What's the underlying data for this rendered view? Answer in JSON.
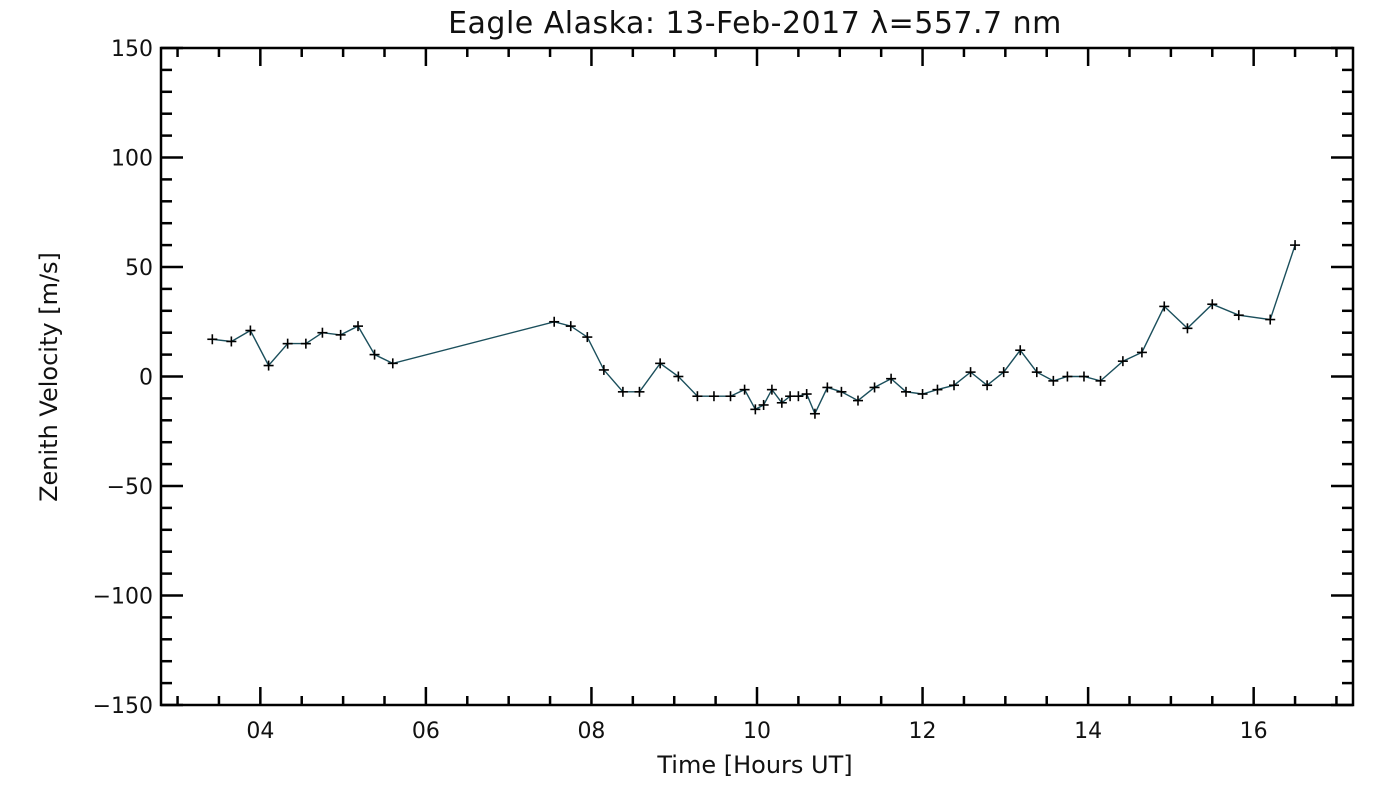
{
  "chart_data": {
    "type": "line",
    "title": "Eagle Alaska: 13-Feb-2017 λ=557.7 nm",
    "xlabel": "Time [Hours UT]",
    "ylabel": "Zenith Velocity [m/s]",
    "xlim": [
      2.8,
      17.2
    ],
    "ylim": [
      -150,
      150
    ],
    "x_ticks": [
      {
        "value": 4,
        "label": "04"
      },
      {
        "value": 6,
        "label": "06"
      },
      {
        "value": 8,
        "label": "08"
      },
      {
        "value": 10,
        "label": "10"
      },
      {
        "value": 12,
        "label": "12"
      },
      {
        "value": 14,
        "label": "14"
      },
      {
        "value": 16,
        "label": "16"
      }
    ],
    "y_ticks": [
      {
        "value": -150,
        "label": "−150"
      },
      {
        "value": -100,
        "label": "−100"
      },
      {
        "value": -50,
        "label": "−50"
      },
      {
        "value": 0,
        "label": "0"
      },
      {
        "value": 50,
        "label": "50"
      },
      {
        "value": 100,
        "label": "100"
      },
      {
        "value": 150,
        "label": "150"
      }
    ],
    "grid": false,
    "marker": "plus",
    "line_color": "#1b4f5c",
    "marker_color": "#000000",
    "series": [
      {
        "x": [
          3.42,
          3.65,
          3.88,
          4.1,
          4.33,
          4.55,
          4.75,
          4.97,
          5.18,
          5.38,
          5.6,
          7.55,
          7.75,
          7.95,
          8.15,
          8.38,
          8.58,
          8.83,
          9.05,
          9.28,
          9.48,
          9.68,
          9.85,
          9.98,
          10.08,
          10.18,
          10.3,
          10.4,
          10.5,
          10.6,
          10.7,
          10.85,
          11.02,
          11.22,
          11.42,
          11.62,
          11.8,
          12.0,
          12.18,
          12.38,
          12.58,
          12.78,
          12.98,
          13.18,
          13.38,
          13.58,
          13.75,
          13.95,
          14.15,
          14.42,
          14.65,
          14.92,
          15.2,
          15.5,
          15.82,
          16.2,
          16.5
        ],
        "values": [
          17,
          16,
          21,
          5,
          15,
          15,
          20,
          19,
          23,
          10,
          6,
          25,
          23,
          18,
          3,
          -7,
          -7,
          6,
          0,
          -9,
          -9,
          -9,
          -6,
          -15,
          -13,
          -6,
          -12,
          -9,
          -9,
          -8,
          -17,
          -5,
          -7,
          -11,
          -5,
          -1,
          -7,
          -8,
          -6,
          -4,
          2,
          -4,
          2,
          12,
          2,
          -2,
          0,
          0,
          -2,
          7,
          11,
          32,
          22,
          33,
          28,
          26,
          60
        ]
      }
    ]
  }
}
